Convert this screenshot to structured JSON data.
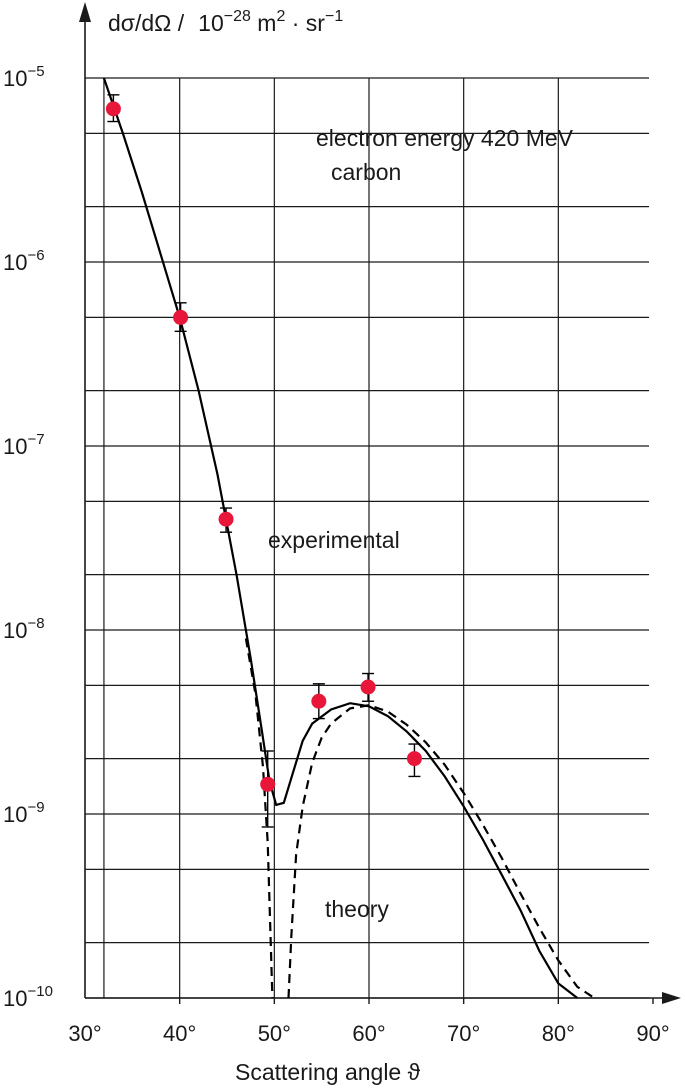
{
  "chart_data": {
    "type": "scatter",
    "ylabel_parts": {
      "quantity": "dσ/dΩ  /",
      "base": "10",
      "exp1": "−28",
      "unit1": " m",
      "exp2": "2",
      "unit2": " · sr",
      "exp3": "−1"
    },
    "xlabel": "Scattering angle ϑ",
    "x_scale": "linear",
    "y_scale": "log",
    "xlim": [
      30,
      90
    ],
    "ylim": [
      1e-10,
      1e-05
    ],
    "x_ticks": [
      30,
      40,
      50,
      60,
      70,
      80,
      90
    ],
    "x_tick_labels": [
      "30°",
      "40°",
      "50°",
      "60°",
      "70°",
      "80°",
      "90°"
    ],
    "y_ticks": [
      1e-10,
      1e-09,
      1e-08,
      1e-07,
      1e-06,
      1e-05
    ],
    "y_tick_labels": [
      {
        "base": "10",
        "exp": "−10"
      },
      {
        "base": "10",
        "exp": "−9"
      },
      {
        "base": "10",
        "exp": "−8"
      },
      {
        "base": "10",
        "exp": "−7"
      },
      {
        "base": "10",
        "exp": "−6"
      },
      {
        "base": "10",
        "exp": "−5"
      }
    ],
    "grid": true,
    "grid_x": [
      32,
      40,
      50,
      60,
      70,
      80
    ],
    "grid_y": [
      1e-10,
      2e-10,
      5e-10,
      1e-09,
      2e-09,
      5e-09,
      1e-08,
      2e-08,
      5e-08,
      1e-07,
      2e-07,
      5e-07,
      1e-06,
      2e-06,
      5e-06,
      1e-05
    ],
    "annotations": {
      "energy": "electron energy 420 MeV",
      "target": "carbon",
      "experimental": "experimental",
      "theory": "theory"
    },
    "series": [
      {
        "style": "points",
        "color": "#e8173a",
        "points": [
          {
            "x": 33.0,
            "y": 6.8e-06,
            "lo": 5.8e-06,
            "hi": 8.1e-06
          },
          {
            "x": 40.1,
            "y": 5e-07,
            "lo": 4.2e-07,
            "hi": 6e-07
          },
          {
            "x": 44.9,
            "y": 4e-08,
            "lo": 3.4e-08,
            "hi": 4.6e-08
          },
          {
            "x": 49.3,
            "y": 1.45e-09,
            "lo": 8.5e-10,
            "hi": 2.2e-09
          },
          {
            "x": 54.7,
            "y": 4.1e-09,
            "lo": 3.3e-09,
            "hi": 5.1e-09
          },
          {
            "x": 59.9,
            "y": 4.9e-09,
            "lo": 4.1e-09,
            "hi": 5.8e-09
          },
          {
            "x": 64.8,
            "y": 2e-09,
            "lo": 1.6e-09,
            "hi": 2.4e-09
          }
        ]
      },
      {
        "style": "solid",
        "x": [
          32.0,
          34,
          36,
          38,
          40,
          42,
          44,
          46,
          47.5,
          48.7,
          49.5,
          50.2,
          51.0,
          52.0,
          53,
          54,
          56,
          58,
          60,
          62,
          64,
          66,
          68,
          70,
          72,
          74,
          76,
          78,
          80,
          82
        ],
        "y": [
          1e-05,
          5e-06,
          2.4e-06,
          1.1e-06,
          5e-07,
          2e-07,
          7e-08,
          2e-08,
          7e-09,
          2.8e-09,
          1.5e-09,
          1.12e-09,
          1.15e-09,
          1.7e-09,
          2.5e-09,
          3.1e-09,
          3.7e-09,
          4e-09,
          3.85e-09,
          3.4e-09,
          2.8e-09,
          2.2e-09,
          1.6e-09,
          1.1e-09,
          7.3e-10,
          4.7e-10,
          3e-10,
          1.8e-10,
          1.2e-10,
          1e-10
        ]
      },
      {
        "style": "dashed",
        "branches": [
          {
            "x": [
              47.0,
              48.0,
              48.8,
              49.3,
              49.6,
              49.8
            ],
            "y": [
              9e-09,
              4.5e-09,
              1.8e-09,
              7e-10,
              2.2e-10,
              1e-10
            ]
          },
          {
            "x": [
              51.5,
              51.8,
              52.3,
              53,
              54,
              55,
              56,
              58,
              60,
              62,
              64,
              66,
              68,
              70,
              72,
              74,
              76,
              78,
              80,
              82,
              83.8
            ],
            "y": [
              1e-10,
              2.2e-10,
              6e-10,
              1.1e-09,
              1.9e-09,
              2.6e-09,
              3.1e-09,
              3.75e-09,
              3.9e-09,
              3.6e-09,
              3.05e-09,
              2.45e-09,
              1.85e-09,
              1.3e-09,
              8.8e-10,
              5.8e-10,
              3.7e-10,
              2.4e-10,
              1.6e-10,
              1.15e-10,
              1e-10
            ]
          }
        ]
      }
    ]
  }
}
